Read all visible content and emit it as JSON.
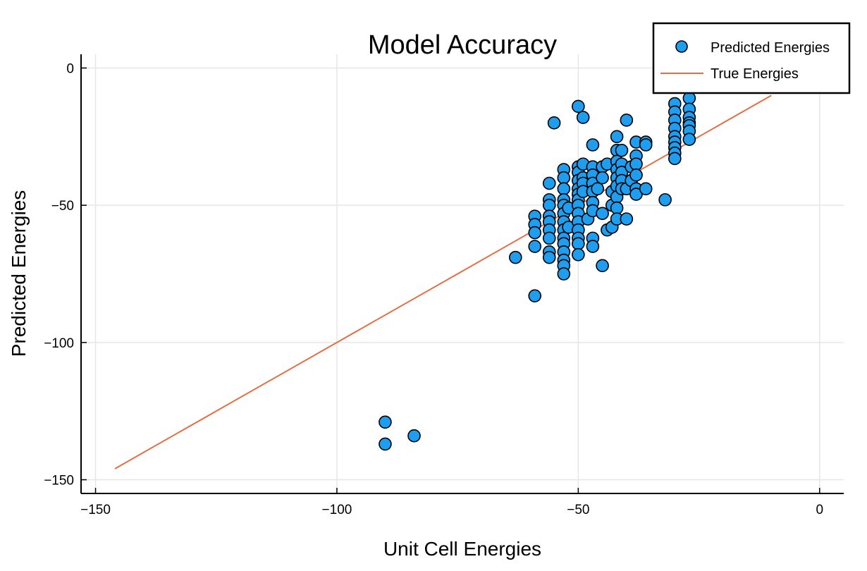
{
  "chart_data": {
    "type": "scatter",
    "title": "Model Accuracy",
    "xlabel": "Unit Cell Energies",
    "ylabel": "Predicted Energies",
    "xlim": [
      -153,
      5
    ],
    "ylim": [
      -155,
      5
    ],
    "xticks": [
      -150,
      -100,
      -50,
      0
    ],
    "yticks": [
      0,
      -50,
      -100,
      -150
    ],
    "xtick_labels": [
      "−150",
      "−100",
      "−50",
      "0"
    ],
    "ytick_labels": [
      "0",
      "−50",
      "−100",
      "−150"
    ],
    "grid": true,
    "legend_position": "top-right",
    "colors": {
      "scatter": "#1f9ef0",
      "line": "#e26f46",
      "marker_edge": "#000000",
      "grid": "#e6e6e6"
    },
    "series": [
      {
        "name": "Predicted Energies",
        "kind": "scatter",
        "points": [
          [
            -90,
            -129
          ],
          [
            -90,
            -137
          ],
          [
            -84,
            -134
          ],
          [
            -63,
            -69
          ],
          [
            -59,
            -83
          ],
          [
            -59,
            -54
          ],
          [
            -59,
            -57
          ],
          [
            -59,
            -60
          ],
          [
            -59,
            -65
          ],
          [
            -56,
            -42
          ],
          [
            -56,
            -48
          ],
          [
            -56,
            -50
          ],
          [
            -56,
            -54
          ],
          [
            -56,
            -56
          ],
          [
            -56,
            -59
          ],
          [
            -56,
            -62
          ],
          [
            -56,
            -67
          ],
          [
            -56,
            -69
          ],
          [
            -55,
            -20
          ],
          [
            -53,
            -37
          ],
          [
            -53,
            -40
          ],
          [
            -53,
            -44
          ],
          [
            -53,
            -48
          ],
          [
            -53,
            -50
          ],
          [
            -53,
            -53
          ],
          [
            -53,
            -56
          ],
          [
            -53,
            -59
          ],
          [
            -53,
            -62
          ],
          [
            -53,
            -64
          ],
          [
            -53,
            -67
          ],
          [
            -53,
            -70
          ],
          [
            -53,
            -72
          ],
          [
            -53,
            -75
          ],
          [
            -52,
            -51
          ],
          [
            -52,
            -58
          ],
          [
            -50,
            -14
          ],
          [
            -50,
            -36
          ],
          [
            -50,
            -38
          ],
          [
            -50,
            -41
          ],
          [
            -50,
            -44
          ],
          [
            -50,
            -46
          ],
          [
            -50,
            -48
          ],
          [
            -50,
            -50
          ],
          [
            -50,
            -53
          ],
          [
            -50,
            -56
          ],
          [
            -50,
            -59
          ],
          [
            -50,
            -62
          ],
          [
            -50,
            -64
          ],
          [
            -50,
            -68
          ],
          [
            -49,
            -18
          ],
          [
            -49,
            -35
          ],
          [
            -49,
            -40
          ],
          [
            -49,
            -42
          ],
          [
            -49,
            -45
          ],
          [
            -48,
            -55
          ],
          [
            -47,
            -28
          ],
          [
            -47,
            -36
          ],
          [
            -47,
            -39
          ],
          [
            -47,
            -42
          ],
          [
            -47,
            -45
          ],
          [
            -47,
            -49
          ],
          [
            -47,
            -52
          ],
          [
            -47,
            -62
          ],
          [
            -47,
            -65
          ],
          [
            -46,
            -44
          ],
          [
            -45,
            -36
          ],
          [
            -45,
            -40
          ],
          [
            -45,
            -53
          ],
          [
            -45,
            -72
          ],
          [
            -44,
            -35
          ],
          [
            -44,
            -59
          ],
          [
            -43,
            -45
          ],
          [
            -43,
            -50
          ],
          [
            -43,
            -58
          ],
          [
            -42,
            -25
          ],
          [
            -42,
            -30
          ],
          [
            -42,
            -34
          ],
          [
            -42,
            -37
          ],
          [
            -42,
            -40
          ],
          [
            -42,
            -43
          ],
          [
            -42,
            -47
          ],
          [
            -42,
            -51
          ],
          [
            -42,
            -55
          ],
          [
            -41,
            -30
          ],
          [
            -41,
            -35
          ],
          [
            -41,
            -38
          ],
          [
            -41,
            -41
          ],
          [
            -41,
            -44
          ],
          [
            -40,
            -19
          ],
          [
            -40,
            -44
          ],
          [
            -40,
            -55
          ],
          [
            -39,
            -36
          ],
          [
            -39,
            -41
          ],
          [
            -38,
            -27
          ],
          [
            -38,
            -32
          ],
          [
            -38,
            -35
          ],
          [
            -38,
            -39
          ],
          [
            -38,
            -44
          ],
          [
            -38,
            -46
          ],
          [
            -36,
            -27
          ],
          [
            -36,
            -28
          ],
          [
            -36,
            -44
          ],
          [
            -32,
            -48
          ],
          [
            -30,
            -13
          ],
          [
            -30,
            -16
          ],
          [
            -30,
            -19
          ],
          [
            -30,
            -22
          ],
          [
            -30,
            -25
          ],
          [
            -30,
            -27
          ],
          [
            -30,
            -29
          ],
          [
            -30,
            -31
          ],
          [
            -30,
            -33
          ],
          [
            -27,
            -11
          ],
          [
            -27,
            -15
          ],
          [
            -27,
            -18
          ],
          [
            -27,
            -20
          ],
          [
            -27,
            -21
          ],
          [
            -27,
            -23
          ],
          [
            -27,
            -26
          ]
        ]
      },
      {
        "name": "True Energies",
        "kind": "line",
        "points": [
          [
            -146,
            -146
          ],
          [
            -10,
            -10
          ]
        ]
      }
    ]
  }
}
